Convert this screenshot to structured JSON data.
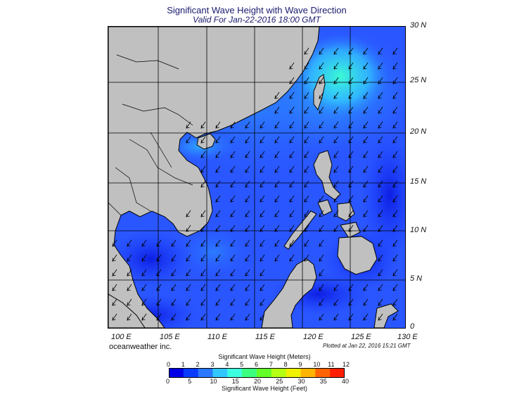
{
  "header": {
    "title": "Significant Wave Height with Wave Direction",
    "subtitle": "Valid For Jan-22-2016 18:00 GMT"
  },
  "axes": {
    "longitude_labels": [
      "100 E",
      "105 E",
      "110 E",
      "115 E",
      "120 E",
      "125 E",
      "130 E"
    ],
    "latitude_labels": [
      "30 N",
      "25 N",
      "20 N",
      "15 N",
      "10 N",
      "5 N",
      "0"
    ]
  },
  "footer": {
    "credit": "oceanweather inc.",
    "plotted": "Plotted at Jan 22, 2016 15:21 GMT"
  },
  "colorbar": {
    "meters_title": "Significant Wave Height (Meters)",
    "meters_ticks": [
      "0",
      "1",
      "2",
      "3",
      "4",
      "5",
      "6",
      "7",
      "8",
      "9",
      "10",
      "11",
      "12"
    ],
    "feet_title": "Significant Wave Height (Feet)",
    "feet_ticks": [
      "0",
      "5",
      "10",
      "15",
      "20",
      "25",
      "30",
      "35",
      "40"
    ],
    "colors": [
      "#0000e6",
      "#0a3cff",
      "#2a78ff",
      "#32c8ff",
      "#3cffe0",
      "#3cff80",
      "#64ff28",
      "#b4ff14",
      "#f0f000",
      "#ffb400",
      "#ff6400",
      "#ff1e00"
    ]
  },
  "map": {
    "land_color": "#c0c0c0",
    "sea_color_dominant": "#2a56ff",
    "wave_direction": "southwest"
  }
}
